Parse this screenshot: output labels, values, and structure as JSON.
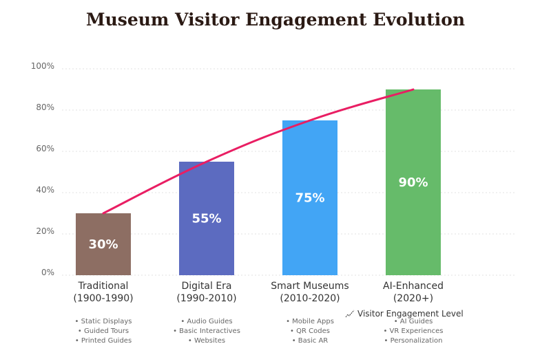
{
  "chart_data": {
    "type": "bar",
    "title": "Museum Visitor Engagement Evolution",
    "xlabel": "",
    "ylabel": "",
    "ylim": [
      0,
      100
    ],
    "yticks": [
      "0%",
      "20%",
      "40%",
      "60%",
      "80%",
      "100%"
    ],
    "ytick_values": [
      0,
      20,
      40,
      60,
      80,
      100
    ],
    "grid": true,
    "categories": [
      {
        "name": "Traditional",
        "period": "(1900-1990)",
        "features": [
          "• Static Displays",
          "• Guided Tours",
          "• Printed Guides"
        ]
      },
      {
        "name": "Digital Era",
        "period": "(1990-2010)",
        "features": [
          "• Audio Guides",
          "• Basic Interactives",
          "• Websites"
        ]
      },
      {
        "name": "Smart Museums",
        "period": "(2010-2020)",
        "features": [
          "• Mobile Apps",
          "• QR Codes",
          "• Basic AR"
        ]
      },
      {
        "name": "AI-Enhanced",
        "period": "(2020+)",
        "features": [
          "• AI Guides",
          "• VR Experiences",
          "• Personalization"
        ]
      }
    ],
    "values": [
      30,
      55,
      75,
      90
    ],
    "value_labels": [
      "30%",
      "55%",
      "75%",
      "90%"
    ],
    "bar_colors": [
      "#8d6e63",
      "#5c6bc0",
      "#42a5f5",
      "#66bb6a"
    ],
    "series": [
      {
        "name": "Visitor Engagement Level",
        "type": "line",
        "values": [
          30,
          55,
          75,
          90
        ],
        "color": "#e91e63"
      }
    ],
    "legend": {
      "label": "Visitor Engagement Level",
      "placement": "bottom-center"
    }
  }
}
